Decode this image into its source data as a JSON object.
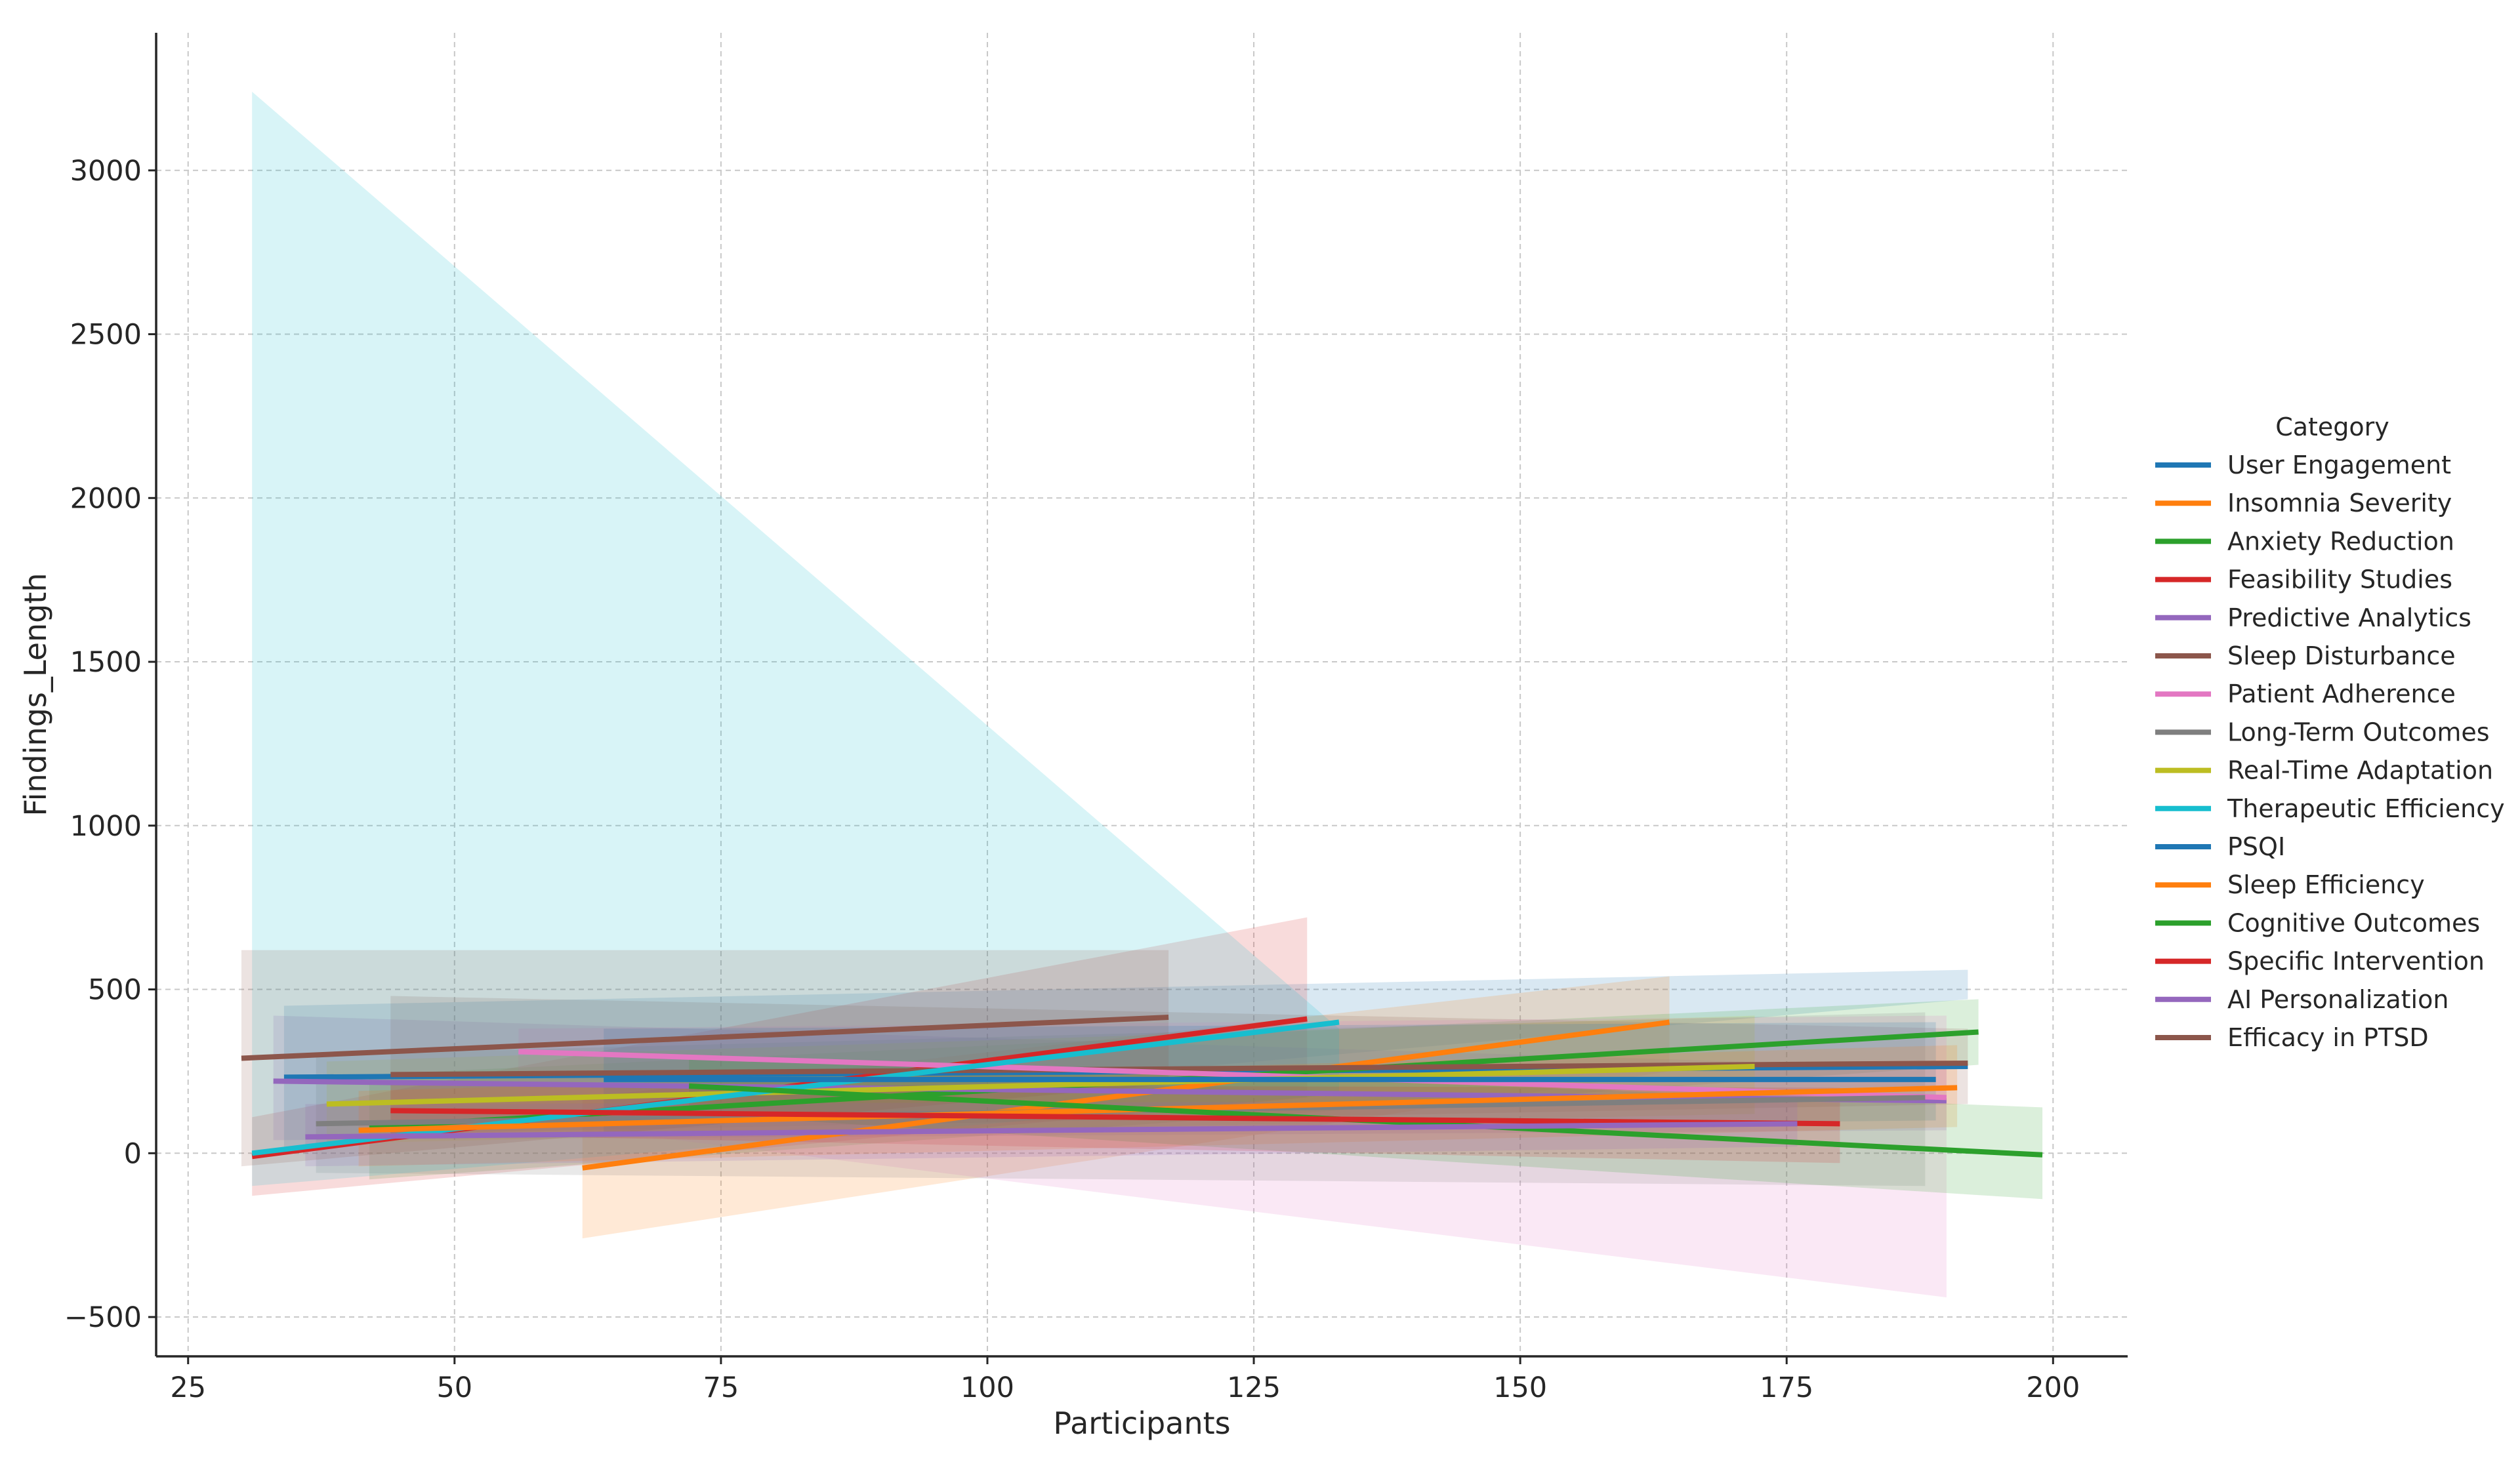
{
  "chart_data": {
    "type": "line",
    "title": "",
    "xlabel": "Participants",
    "ylabel": "Findings_Length",
    "xlim": [
      22,
      207
    ],
    "ylim": [
      -620,
      3420
    ],
    "xticks": [
      25,
      50,
      75,
      100,
      125,
      150,
      175,
      200
    ],
    "yticks": [
      -500,
      0,
      500,
      1000,
      1500,
      2000,
      2500,
      3000
    ],
    "ytick_labels": [
      "−500",
      "0",
      "500",
      "1000",
      "1500",
      "2000",
      "2500",
      "3000"
    ],
    "grid": true,
    "legend": {
      "title": "Category",
      "placement": "right"
    },
    "series": [
      {
        "name": "User Engagement",
        "color": "#1f77b4",
        "x": [
          34,
          192
        ],
        "y": [
          232,
          265
        ],
        "ci_low": [
          20,
          470
        ],
        "ci_high": [
          450,
          560
        ]
      },
      {
        "name": "Insomnia Severity",
        "color": "#ff7f0e",
        "x": [
          62,
          164
        ],
        "y": [
          -45,
          400
        ],
        "ci_low": [
          -260,
          250
        ],
        "ci_high": [
          170,
          540
        ]
      },
      {
        "name": "Anxiety Reduction",
        "color": "#2ca02c",
        "x": [
          42,
          193
        ],
        "y": [
          80,
          370
        ],
        "ci_low": [
          -80,
          270
        ],
        "ci_high": [
          240,
          470
        ]
      },
      {
        "name": "Feasibility Studies",
        "color": "#d62728",
        "x": [
          31,
          130
        ],
        "y": [
          -10,
          410
        ],
        "ci_low": [
          -130,
          170
        ],
        "ci_high": [
          110,
          720
        ]
      },
      {
        "name": "Predictive Analytics",
        "color": "#9467bd",
        "x": [
          33,
          190
        ],
        "y": [
          220,
          160
        ],
        "ci_low": [
          40,
          70
        ],
        "ci_high": [
          420,
          260
        ]
      },
      {
        "name": "Sleep Disturbance",
        "color": "#8c564b",
        "x": [
          44,
          192
        ],
        "y": [
          240,
          275
        ],
        "ci_low": [
          60,
          150
        ],
        "ci_high": [
          480,
          380
        ]
      },
      {
        "name": "Patient Adherence",
        "color": "#e377c2",
        "x": [
          56,
          190
        ],
        "y": [
          310,
          170
        ],
        "ci_low": [
          100,
          -440
        ],
        "ci_high": [
          380,
          420
        ]
      },
      {
        "name": "Long-Term Outcomes",
        "color": "#7f7f7f",
        "x": [
          37,
          188
        ],
        "y": [
          90,
          170
        ],
        "ci_low": [
          -60,
          -100
        ],
        "ci_high": [
          300,
          430
        ]
      },
      {
        "name": "Real-Time Adaptation",
        "color": "#bcbd22",
        "x": [
          38,
          172
        ],
        "y": [
          150,
          265
        ],
        "ci_low": [
          30,
          120
        ],
        "ci_high": [
          280,
          420
        ]
      },
      {
        "name": "Therapeutic Efficiency",
        "color": "#17becf",
        "x": [
          31,
          133
        ],
        "y": [
          0,
          400
        ],
        "ci_low": [
          -100,
          180
        ],
        "ci_high": [
          3240,
          380
        ]
      },
      {
        "name": "PSQI",
        "color": "#1f77b4",
        "x": [
          64,
          189
        ],
        "y": [
          225,
          225
        ],
        "ci_low": [
          60,
          100
        ],
        "ci_high": [
          380,
          400
        ]
      },
      {
        "name": "Sleep Efficiency",
        "color": "#ff7f0e",
        "x": [
          41,
          191
        ],
        "y": [
          70,
          200
        ],
        "ci_low": [
          -40,
          80
        ],
        "ci_high": [
          190,
          330
        ]
      },
      {
        "name": "Cognitive Outcomes",
        "color": "#2ca02c",
        "x": [
          72,
          199
        ],
        "y": [
          205,
          -5
        ],
        "ci_low": [
          120,
          -140
        ],
        "ci_high": [
          300,
          140
        ]
      },
      {
        "name": "Specific Intervention",
        "color": "#d62728",
        "x": [
          44,
          180
        ],
        "y": [
          130,
          90
        ],
        "ci_low": [
          60,
          -30
        ],
        "ci_high": [
          210,
          200
        ]
      },
      {
        "name": "AI Personalization",
        "color": "#9467bd",
        "x": [
          36,
          176
        ],
        "y": [
          50,
          90
        ],
        "ci_low": [
          -40,
          20
        ],
        "ci_high": [
          150,
          160
        ]
      },
      {
        "name": "Efficacy in PTSD",
        "color": "#8c564b",
        "x": [
          30,
          117
        ],
        "y": [
          290,
          415
        ],
        "ci_low": [
          -40,
          210
        ],
        "ci_high": [
          620,
          620
        ]
      }
    ]
  }
}
